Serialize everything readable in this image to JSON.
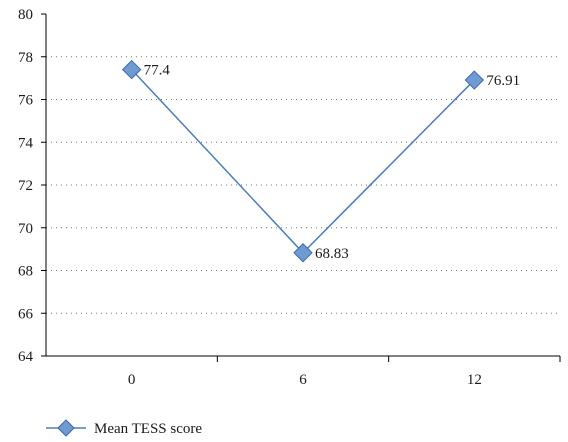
{
  "chart_data": {
    "type": "line",
    "categories": [
      "0",
      "6",
      "12"
    ],
    "series": [
      {
        "name": "Mean TESS score",
        "values": [
          77.4,
          68.83,
          76.91
        ]
      }
    ],
    "data_labels": [
      "77.4",
      "68.83",
      "76.91"
    ],
    "y_ticks": [
      "64",
      "66",
      "68",
      "70",
      "72",
      "74",
      "76",
      "78",
      "80"
    ],
    "ylim": [
      64,
      80
    ],
    "grid": "horizontal dotted",
    "legend_position": "bottom-left",
    "colors": {
      "line": "#4a7ebb",
      "marker_fill": "#6f9bd2",
      "marker_stroke": "#3a6aa8",
      "axis": "#000000",
      "grid": "#777777"
    }
  }
}
